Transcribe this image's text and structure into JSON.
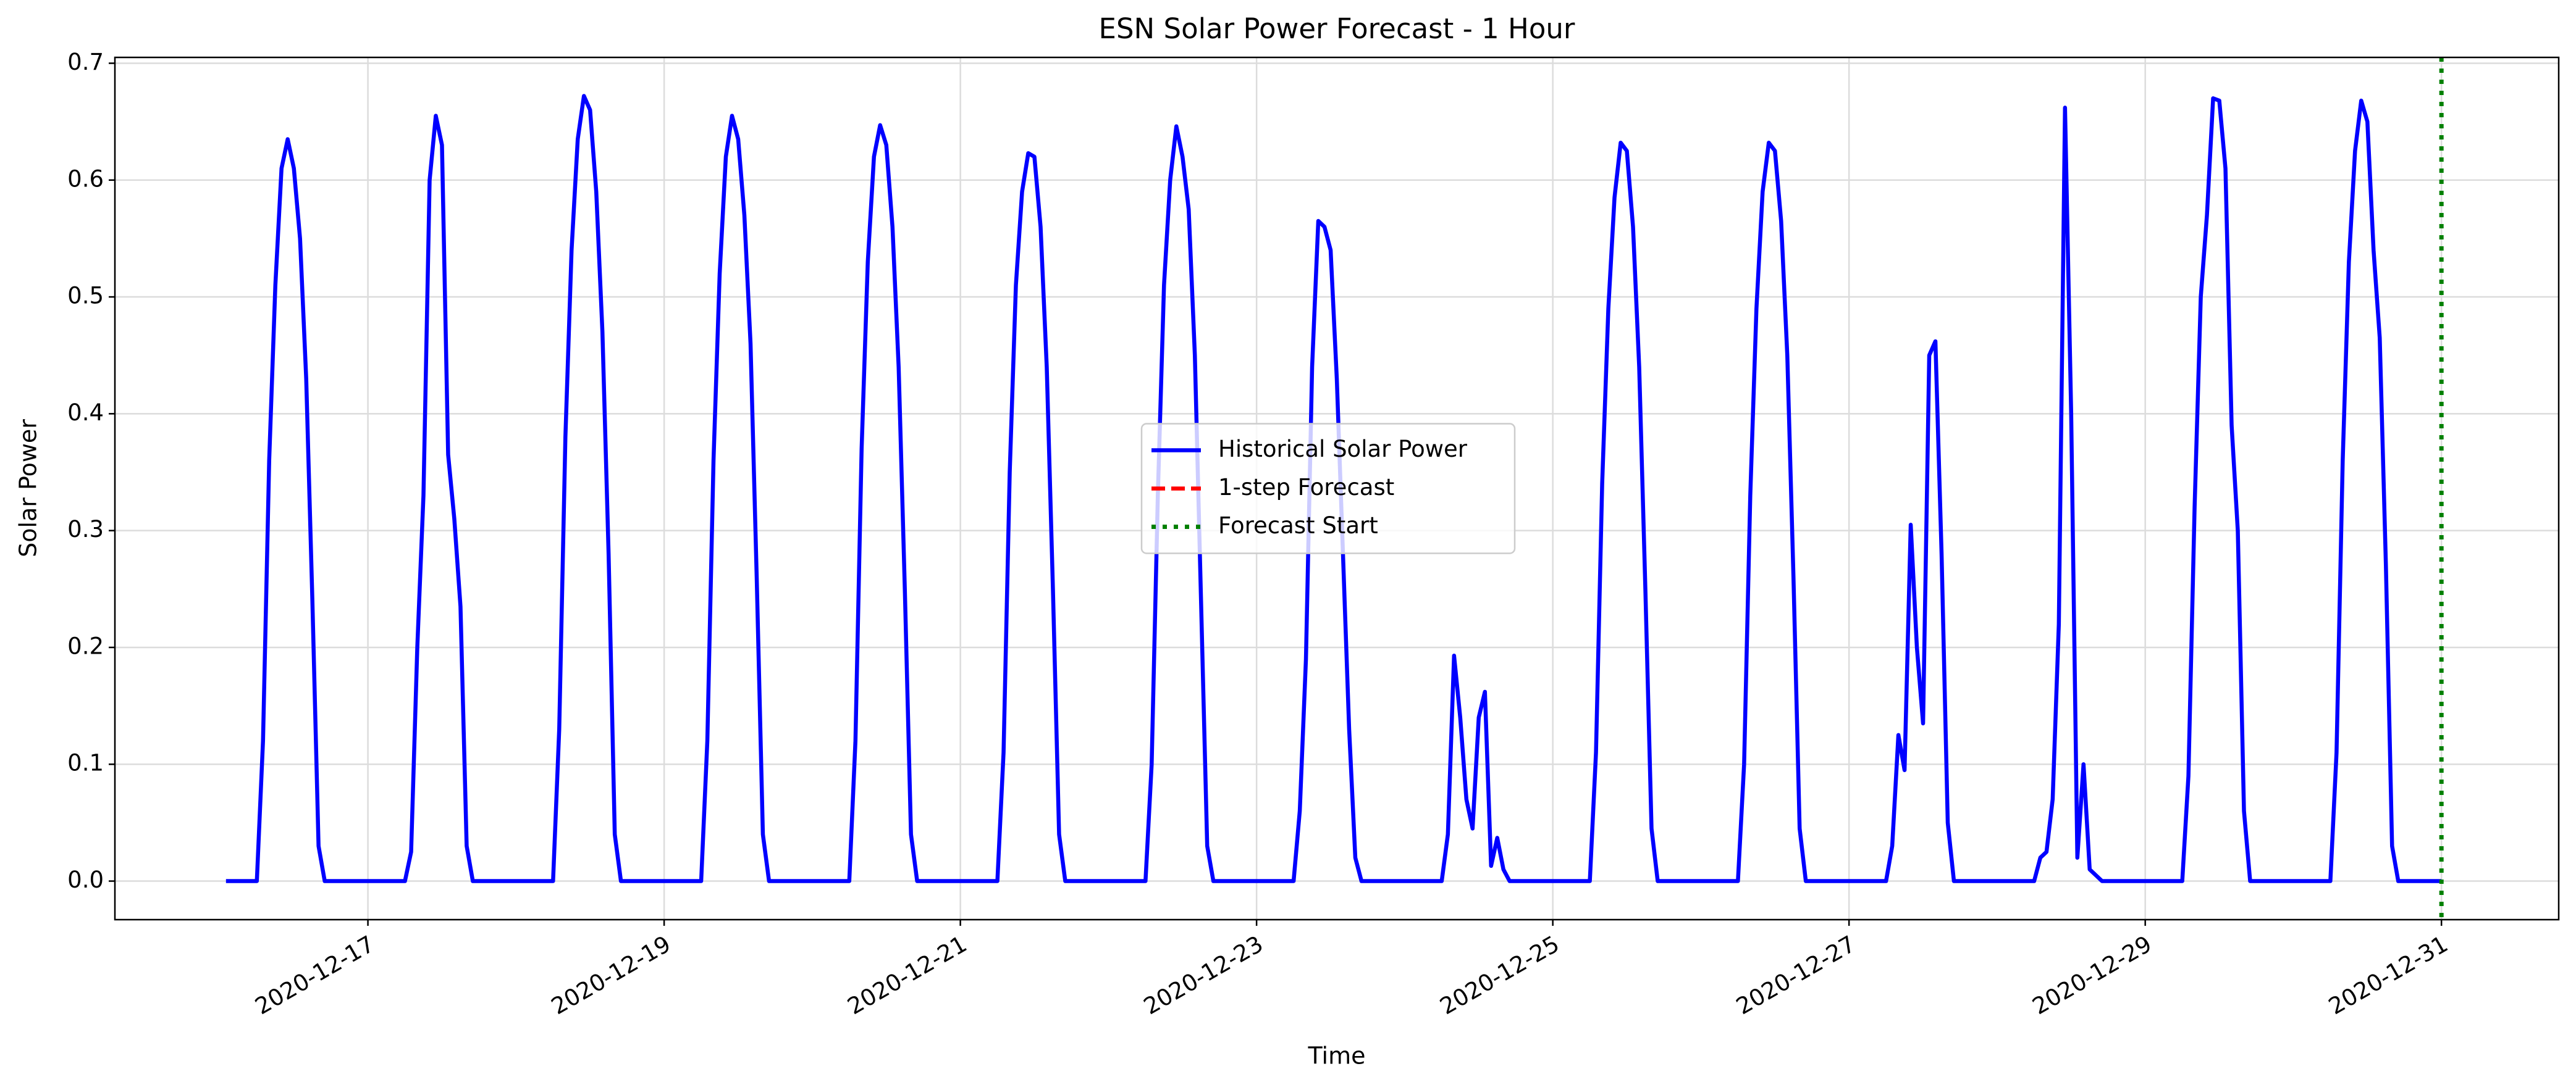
{
  "chart_data": {
    "type": "line",
    "title": "ESN Solar Power Forecast - 1 Hour",
    "xlabel": "Time",
    "ylabel": "Solar Power",
    "xlim": [
      "2020-12-15 07:00",
      "2020-12-31 19:00"
    ],
    "xticks": [
      "2020-12-17",
      "2020-12-19",
      "2020-12-21",
      "2020-12-23",
      "2020-12-25",
      "2020-12-27",
      "2020-12-29",
      "2020-12-31"
    ],
    "ylim": [
      -0.033,
      0.705
    ],
    "yticks": [
      {
        "value": 0,
        "label": "0.0"
      },
      0.1,
      0.2,
      0.3,
      0.4,
      0.5,
      0.6,
      0.7
    ],
    "grid": true,
    "legend": "center",
    "series": [
      {
        "name": "Historical Solar Power",
        "color": "#0000ff",
        "dash": false,
        "x": [
          "2020-12-16 01:00",
          "2020-12-16 06:00",
          "2020-12-16 07:00",
          "2020-12-16 08:00",
          "2020-12-16 09:00",
          "2020-12-16 10:00",
          "2020-12-16 11:00",
          "2020-12-16 12:00",
          "2020-12-16 13:00",
          "2020-12-16 14:00",
          "2020-12-16 15:00",
          "2020-12-16 16:00",
          "2020-12-16 17:00",
          "2020-12-17 06:00",
          "2020-12-17 07:00",
          "2020-12-17 08:00",
          "2020-12-17 09:00",
          "2020-12-17 10:00",
          "2020-12-17 11:00",
          "2020-12-17 12:00",
          "2020-12-17 13:00",
          "2020-12-17 14:00",
          "2020-12-17 15:00",
          "2020-12-17 16:00",
          "2020-12-17 17:00",
          "2020-12-18 06:00",
          "2020-12-18 07:00",
          "2020-12-18 08:00",
          "2020-12-18 09:00",
          "2020-12-18 10:00",
          "2020-12-18 11:00",
          "2020-12-18 12:00",
          "2020-12-18 13:00",
          "2020-12-18 14:00",
          "2020-12-18 15:00",
          "2020-12-18 16:00",
          "2020-12-18 17:00",
          "2020-12-19 06:00",
          "2020-12-19 07:00",
          "2020-12-19 08:00",
          "2020-12-19 09:00",
          "2020-12-19 10:00",
          "2020-12-19 11:00",
          "2020-12-19 12:00",
          "2020-12-19 13:00",
          "2020-12-19 14:00",
          "2020-12-19 15:00",
          "2020-12-19 16:00",
          "2020-12-19 17:00",
          "2020-12-20 06:00",
          "2020-12-20 07:00",
          "2020-12-20 08:00",
          "2020-12-20 09:00",
          "2020-12-20 10:00",
          "2020-12-20 11:00",
          "2020-12-20 12:00",
          "2020-12-20 13:00",
          "2020-12-20 14:00",
          "2020-12-20 15:00",
          "2020-12-20 16:00",
          "2020-12-20 17:00",
          "2020-12-21 06:00",
          "2020-12-21 07:00",
          "2020-12-21 08:00",
          "2020-12-21 09:00",
          "2020-12-21 10:00",
          "2020-12-21 11:00",
          "2020-12-21 12:00",
          "2020-12-21 13:00",
          "2020-12-21 14:00",
          "2020-12-21 15:00",
          "2020-12-21 16:00",
          "2020-12-21 17:00",
          "2020-12-22 06:00",
          "2020-12-22 07:00",
          "2020-12-22 08:00",
          "2020-12-22 09:00",
          "2020-12-22 10:00",
          "2020-12-22 11:00",
          "2020-12-22 12:00",
          "2020-12-22 13:00",
          "2020-12-22 14:00",
          "2020-12-22 15:00",
          "2020-12-22 16:00",
          "2020-12-22 17:00",
          "2020-12-23 06:00",
          "2020-12-23 07:00",
          "2020-12-23 08:00",
          "2020-12-23 09:00",
          "2020-12-23 10:00",
          "2020-12-23 11:00",
          "2020-12-23 12:00",
          "2020-12-23 13:00",
          "2020-12-23 14:00",
          "2020-12-23 15:00",
          "2020-12-23 16:00",
          "2020-12-23 17:00",
          "2020-12-24 06:00",
          "2020-12-24 07:00",
          "2020-12-24 08:00",
          "2020-12-24 09:00",
          "2020-12-24 10:00",
          "2020-12-24 11:00",
          "2020-12-24 12:00",
          "2020-12-24 13:00",
          "2020-12-24 14:00",
          "2020-12-24 15:00",
          "2020-12-24 16:00",
          "2020-12-24 17:00",
          "2020-12-25 06:00",
          "2020-12-25 07:00",
          "2020-12-25 08:00",
          "2020-12-25 09:00",
          "2020-12-25 10:00",
          "2020-12-25 11:00",
          "2020-12-25 12:00",
          "2020-12-25 13:00",
          "2020-12-25 14:00",
          "2020-12-25 15:00",
          "2020-12-25 16:00",
          "2020-12-25 17:00",
          "2020-12-26 06:00",
          "2020-12-26 07:00",
          "2020-12-26 08:00",
          "2020-12-26 09:00",
          "2020-12-26 10:00",
          "2020-12-26 11:00",
          "2020-12-26 12:00",
          "2020-12-26 13:00",
          "2020-12-26 14:00",
          "2020-12-26 15:00",
          "2020-12-26 16:00",
          "2020-12-26 17:00",
          "2020-12-27 06:00",
          "2020-12-27 07:00",
          "2020-12-27 08:00",
          "2020-12-27 09:00",
          "2020-12-27 10:00",
          "2020-12-27 11:00",
          "2020-12-27 12:00",
          "2020-12-27 13:00",
          "2020-12-27 14:00",
          "2020-12-27 15:00",
          "2020-12-27 16:00",
          "2020-12-27 17:00",
          "2020-12-28 06:00",
          "2020-12-28 07:00",
          "2020-12-28 08:00",
          "2020-12-28 09:00",
          "2020-12-28 10:00",
          "2020-12-28 11:00",
          "2020-12-28 12:00",
          "2020-12-28 13:00",
          "2020-12-28 14:00",
          "2020-12-28 15:00",
          "2020-12-28 16:00",
          "2020-12-28 17:00",
          "2020-12-29 06:00",
          "2020-12-29 07:00",
          "2020-12-29 08:00",
          "2020-12-29 09:00",
          "2020-12-29 10:00",
          "2020-12-29 11:00",
          "2020-12-29 12:00",
          "2020-12-29 13:00",
          "2020-12-29 14:00",
          "2020-12-29 15:00",
          "2020-12-29 16:00",
          "2020-12-29 17:00",
          "2020-12-30 06:00",
          "2020-12-30 07:00",
          "2020-12-30 08:00",
          "2020-12-30 09:00",
          "2020-12-30 10:00",
          "2020-12-30 11:00",
          "2020-12-30 12:00",
          "2020-12-30 13:00",
          "2020-12-30 14:00",
          "2020-12-30 15:00",
          "2020-12-30 16:00",
          "2020-12-30 17:00",
          "2020-12-31 00:00"
        ],
        "values": [
          0,
          0,
          0.12,
          0.36,
          0.51,
          0.61,
          0.635,
          0.61,
          0.55,
          0.43,
          0.24,
          0.03,
          0,
          0,
          0.025,
          0.2,
          0.33,
          0.6,
          0.655,
          0.63,
          0.365,
          0.31,
          0.235,
          0.03,
          0,
          0,
          0.13,
          0.38,
          0.54,
          0.635,
          0.672,
          0.66,
          0.59,
          0.47,
          0.28,
          0.04,
          0,
          0,
          0.12,
          0.36,
          0.52,
          0.62,
          0.655,
          0.635,
          0.57,
          0.46,
          0.26,
          0.04,
          0,
          0,
          0.12,
          0.37,
          0.53,
          0.62,
          0.647,
          0.63,
          0.56,
          0.44,
          0.25,
          0.04,
          0,
          0,
          0.11,
          0.35,
          0.51,
          0.59,
          0.623,
          0.62,
          0.56,
          0.44,
          0.25,
          0.04,
          0,
          0,
          0.1,
          0.33,
          0.51,
          0.6,
          0.646,
          0.62,
          0.575,
          0.45,
          0.24,
          0.03,
          0,
          0,
          0.06,
          0.19,
          0.44,
          0.565,
          0.56,
          0.54,
          0.43,
          0.28,
          0.13,
          0.02,
          0,
          0,
          0.04,
          0.193,
          0.14,
          0.07,
          0.045,
          0.14,
          0.162,
          0.013,
          0.037,
          0.01,
          0,
          0,
          0.11,
          0.34,
          0.49,
          0.585,
          0.632,
          0.625,
          0.56,
          0.44,
          0.25,
          0.045,
          0,
          0,
          0.1,
          0.33,
          0.49,
          0.59,
          0.632,
          0.625,
          0.565,
          0.45,
          0.26,
          0.045,
          0,
          0,
          0.03,
          0.125,
          0.095,
          0.305,
          0.2,
          0.135,
          0.45,
          0.462,
          0.28,
          0.05,
          0,
          0,
          0.02,
          0.025,
          0.07,
          0.22,
          0.662,
          0.4,
          0.02,
          0.1,
          0.01,
          0.005,
          0,
          0,
          0.09,
          0.32,
          0.5,
          0.57,
          0.67,
          0.668,
          0.61,
          0.39,
          0.3,
          0.06,
          0,
          0,
          0.11,
          0.36,
          0.53,
          0.625,
          0.668,
          0.65,
          0.54,
          0.465,
          0.27,
          0.03,
          0,
          0
        ]
      },
      {
        "name": "1-step Forecast",
        "color": "#ff0000",
        "dash": true,
        "x": [],
        "values": []
      }
    ],
    "vlines": [
      {
        "name": "Forecast Start",
        "x": "2020-12-31 00:00",
        "color": "#008000"
      }
    ]
  }
}
